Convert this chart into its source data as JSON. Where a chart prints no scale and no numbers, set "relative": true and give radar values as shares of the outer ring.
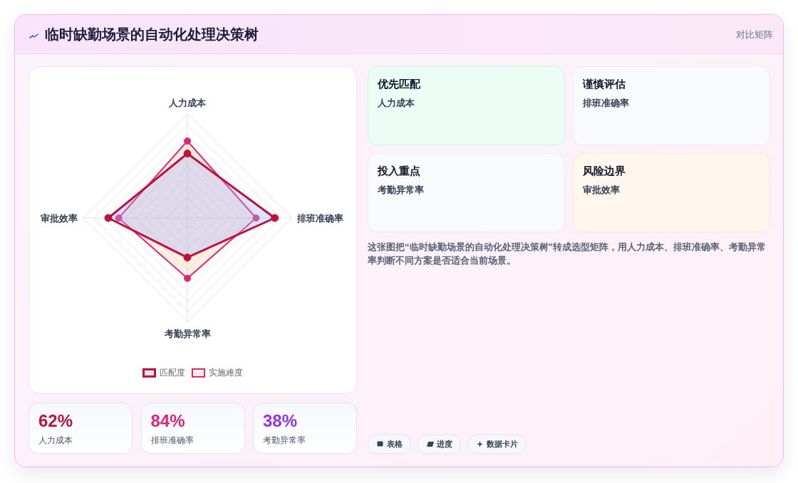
{
  "chart_data": [
    {
      "type": "other",
      "title": "临时缺勤场景的自动化处理决策树",
      "annotations": [
        "对比矩阵"
      ]
    },
    {
      "type": "radar",
      "categories": [
        "人力成本",
        "排班准确率",
        "考勤异常率",
        "审批效率"
      ],
      "relative": true,
      "grid": true,
      "marker": "circle",
      "legend": "bottom",
      "series": [
        {
          "name": "匹配度",
          "color": "#be123c",
          "values": [
            0.62,
            0.84,
            0.38,
            0.76
          ]
        },
        {
          "name": "实施难度",
          "color": "#db2777",
          "values": [
            0.74,
            0.66,
            0.58,
            0.66
          ]
        }
      ]
    },
    {
      "type": "other",
      "annotations": [
        "62%",
        "人力成本",
        "84%",
        "排班准确率",
        "38%",
        "考勤异常率"
      ],
      "colors": [
        "#be123c",
        "#db2777",
        "#9333ea"
      ]
    },
    {
      "type": "other",
      "annotations": [
        "优先匹配",
        "人力成本",
        "谨慎评估",
        "排班准确率",
        "投入重点",
        "考勤异常率",
        "风险边界",
        "审批效率"
      ],
      "colors": [
        "#ecfdf5",
        "#f8fafc",
        "#f8fafc",
        "#fff7ed"
      ]
    },
    {
      "type": "other",
      "annotations": [
        "这张图把“临时缺勤场景的自动化处理决策树”转成选型矩阵，用人力成本、排班准确率、考勤异常率判断不同方案是否适合当前场景。"
      ]
    },
    {
      "type": "other",
      "annotations": [
        "表格",
        "进度",
        "数据卡片"
      ]
    }
  ]
}
